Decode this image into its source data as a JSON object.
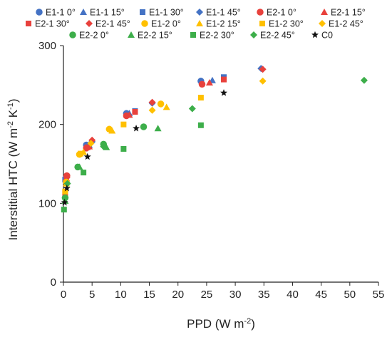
{
  "chart_data": {
    "type": "scatter",
    "xlabel": {
      "base": "PPD (W m",
      "sup": "-2",
      "end": ")"
    },
    "ylabel": {
      "base": "Interstitial HTC (W m",
      "sup1": "-2",
      "mid": " K",
      "sup2": "-1",
      "end": ")"
    },
    "xlim": [
      0,
      55
    ],
    "ylim": [
      0,
      300
    ],
    "xticks": [
      "0",
      "5",
      "10",
      "15",
      "20",
      "25",
      "30",
      "35",
      "40",
      "45",
      "50",
      "55"
    ],
    "yticks": [
      "0",
      "100",
      "200",
      "300"
    ],
    "grid": false,
    "legend_placement": "top",
    "series": [
      {
        "name": "E1-1 0°",
        "marker": "circle",
        "color": "#4472C4",
        "points": [
          [
            0.5,
            133
          ],
          [
            4,
            174
          ],
          [
            11,
            214
          ],
          [
            24,
            255
          ]
        ]
      },
      {
        "name": "E1-1 15°",
        "marker": "triangle",
        "color": "#4472C4",
        "points": [
          [
            0.5,
            131
          ],
          [
            4.5,
            174
          ],
          [
            11.5,
            214
          ],
          [
            26,
            256
          ]
        ]
      },
      {
        "name": "E1-1 30°",
        "marker": "square",
        "color": "#4472C4",
        "points": [
          [
            0.3,
            130
          ],
          [
            4,
            172
          ],
          [
            12.5,
            217
          ],
          [
            28,
            260
          ]
        ]
      },
      {
        "name": "E1-1 45°",
        "marker": "diamond",
        "color": "#4472C4",
        "points": [
          [
            0.5,
            133
          ],
          [
            5,
            178
          ],
          [
            15.5,
            227
          ],
          [
            34.5,
            271
          ]
        ]
      },
      {
        "name": "E2-1 0°",
        "marker": "circle",
        "color": "#E8413C",
        "points": [
          [
            0.6,
            135
          ],
          [
            4,
            170
          ],
          [
            11,
            211
          ],
          [
            24.2,
            251
          ]
        ]
      },
      {
        "name": "E2-1 15°",
        "marker": "triangle",
        "color": "#E8413C",
        "points": [
          [
            0.5,
            132
          ],
          [
            4.5,
            172
          ],
          [
            11.5,
            212
          ],
          [
            25.5,
            253
          ]
        ]
      },
      {
        "name": "E2-1 30°",
        "marker": "square",
        "color": "#E8413C",
        "points": [
          [
            0.3,
            113
          ],
          [
            4.2,
            171
          ],
          [
            12.5,
            216
          ],
          [
            28,
            257
          ]
        ]
      },
      {
        "name": "E2-1 45°",
        "marker": "diamond",
        "color": "#E8413C",
        "points": [
          [
            0.6,
            133
          ],
          [
            5,
            180
          ],
          [
            15.5,
            228
          ],
          [
            34.8,
            270
          ]
        ]
      },
      {
        "name": "E1-2 0°",
        "marker": "circle",
        "color": "#FFC000",
        "points": [
          [
            0.5,
            127
          ],
          [
            2.8,
            162
          ],
          [
            8,
            194
          ],
          [
            17,
            226
          ]
        ]
      },
      {
        "name": "E1-2 15°",
        "marker": "triangle",
        "color": "#FFC000",
        "points": [
          [
            0.5,
            125
          ],
          [
            3.5,
            165
          ],
          [
            8.5,
            192
          ],
          [
            18,
            222
          ]
        ]
      },
      {
        "name": "E1-2 30°",
        "marker": "square",
        "color": "#FFC000",
        "points": [
          [
            0.3,
            115
          ],
          [
            3,
            163
          ],
          [
            10.5,
            200
          ],
          [
            24,
            234
          ]
        ]
      },
      {
        "name": "E1-2 45°",
        "marker": "diamond",
        "color": "#FFC000",
        "points": [
          [
            0.5,
            127
          ],
          [
            4.8,
            176
          ],
          [
            15.5,
            218
          ],
          [
            34.8,
            255
          ]
        ]
      },
      {
        "name": "E2-2 0°",
        "marker": "circle",
        "color": "#3DAE4A",
        "points": [
          [
            0.3,
            107
          ],
          [
            2.5,
            146
          ],
          [
            7,
            175
          ],
          [
            14,
            197
          ]
        ]
      },
      {
        "name": "E2-2 15°",
        "marker": "triangle",
        "color": "#3DAE4A",
        "points": [
          [
            0.3,
            103
          ],
          [
            2.8,
            146
          ],
          [
            7.5,
            171
          ],
          [
            16.5,
            195
          ]
        ]
      },
      {
        "name": "E2-2 30°",
        "marker": "square",
        "color": "#3DAE4A",
        "points": [
          [
            0.1,
            92
          ],
          [
            3.5,
            139
          ],
          [
            10.5,
            169
          ],
          [
            24,
            199
          ]
        ]
      },
      {
        "name": "E2-2 45°",
        "marker": "diamond",
        "color": "#3DAE4A",
        "points": [
          [
            0.7,
            125
          ],
          [
            7,
            172
          ],
          [
            22.5,
            220
          ],
          [
            52.5,
            256
          ]
        ]
      },
      {
        "name": "C0",
        "marker": "star",
        "color": "#111111",
        "points": [
          [
            0.2,
            101
          ],
          [
            0.6,
            119
          ],
          [
            4.2,
            159
          ],
          [
            12.7,
            195
          ],
          [
            28,
            240
          ]
        ]
      }
    ]
  }
}
